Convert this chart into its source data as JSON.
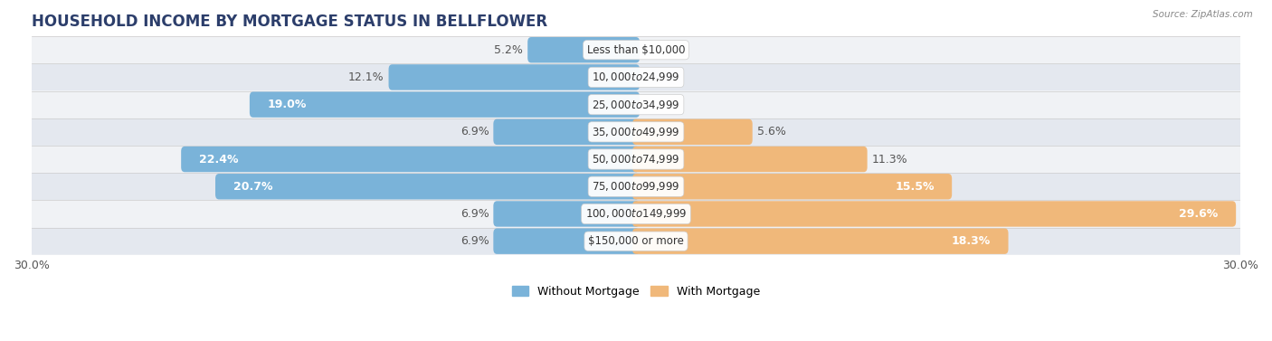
{
  "title": "HOUSEHOLD INCOME BY MORTGAGE STATUS IN BELLFLOWER",
  "source": "Source: ZipAtlas.com",
  "categories": [
    "Less than $10,000",
    "$10,000 to $24,999",
    "$25,000 to $34,999",
    "$35,000 to $49,999",
    "$50,000 to $74,999",
    "$75,000 to $99,999",
    "$100,000 to $149,999",
    "$150,000 or more"
  ],
  "without_mortgage": [
    5.2,
    12.1,
    19.0,
    6.9,
    22.4,
    20.7,
    6.9,
    6.9
  ],
  "with_mortgage": [
    0.0,
    0.0,
    0.0,
    5.6,
    11.3,
    15.5,
    29.6,
    18.3
  ],
  "without_mortgage_color": "#7ab3d9",
  "with_mortgage_color": "#f0b87a",
  "row_bg_colors": [
    "#f0f2f5",
    "#e4e8ef"
  ],
  "xlim": 30.0,
  "legend_labels": [
    "Without Mortgage",
    "With Mortgage"
  ],
  "title_fontsize": 12,
  "label_fontsize": 9,
  "cat_fontsize": 8.5,
  "bar_height": 0.58,
  "figsize": [
    14.06,
    3.77
  ],
  "dpi": 100,
  "inside_label_threshold": 14,
  "title_color": "#2c3e6b",
  "label_color_outside": "#555555",
  "label_color_inside": "#ffffff"
}
